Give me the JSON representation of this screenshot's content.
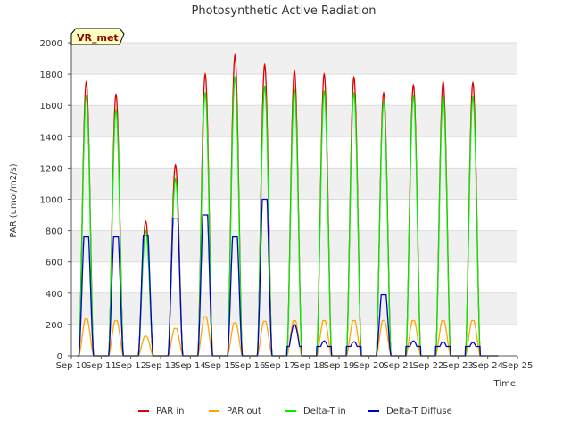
{
  "chart_data": {
    "type": "line",
    "title": "Photosynthetic Active Radiation",
    "xlabel": "Time",
    "ylabel": "PAR (umol/m2/s)",
    "site_label": "VR_met",
    "ylim": [
      0,
      2000
    ],
    "yticks": [
      0,
      200,
      400,
      600,
      800,
      1000,
      1200,
      1400,
      1600,
      1800,
      2000
    ],
    "xlim": [
      10,
      25
    ],
    "xticks": [
      {
        "value": 10,
        "label": "Sep 10"
      },
      {
        "value": 11,
        "label": "Sep 11"
      },
      {
        "value": 12,
        "label": "Sep 12"
      },
      {
        "value": 13,
        "label": "Sep 13"
      },
      {
        "value": 14,
        "label": "Sep 14"
      },
      {
        "value": 15,
        "label": "Sep 15"
      },
      {
        "value": 16,
        "label": "Sep 16"
      },
      {
        "value": 17,
        "label": "Sep 17"
      },
      {
        "value": 18,
        "label": "Sep 18"
      },
      {
        "value": 19,
        "label": "Sep 19"
      },
      {
        "value": 20,
        "label": "Sep 20"
      },
      {
        "value": 21,
        "label": "Sep 21"
      },
      {
        "value": 22,
        "label": "Sep 22"
      },
      {
        "value": 23,
        "label": "Sep 23"
      },
      {
        "value": 24,
        "label": "Sep 24"
      },
      {
        "value": 25,
        "label": "Sep 25"
      }
    ],
    "day_peaks": [
      {
        "day": 10,
        "par_in": 1750,
        "par_out": 235,
        "delta_t_in": 1660,
        "diffuse": 760
      },
      {
        "day": 11,
        "par_in": 1670,
        "par_out": 225,
        "delta_t_in": 1570,
        "diffuse": 760
      },
      {
        "day": 12,
        "par_in": 860,
        "par_out": 125,
        "delta_t_in": 800,
        "diffuse": 770
      },
      {
        "day": 13,
        "par_in": 1220,
        "par_out": 175,
        "delta_t_in": 1130,
        "diffuse": 880
      },
      {
        "day": 14,
        "par_in": 1800,
        "par_out": 250,
        "delta_t_in": 1680,
        "diffuse": 900
      },
      {
        "day": 15,
        "par_in": 1920,
        "par_out": 210,
        "delta_t_in": 1780,
        "diffuse": 760
      },
      {
        "day": 16,
        "par_in": 1860,
        "par_out": 220,
        "delta_t_in": 1720,
        "diffuse": 1000
      },
      {
        "day": 17,
        "par_in": 1820,
        "par_out": 225,
        "delta_t_in": 1700,
        "diffuse": 200
      },
      {
        "day": 18,
        "par_in": 1800,
        "par_out": 225,
        "delta_t_in": 1690,
        "diffuse": 95
      },
      {
        "day": 19,
        "par_in": 1780,
        "par_out": 225,
        "delta_t_in": 1680,
        "diffuse": 90
      },
      {
        "day": 20,
        "par_in": 1680,
        "par_out": 225,
        "delta_t_in": 1620,
        "diffuse": 390
      },
      {
        "day": 21,
        "par_in": 1730,
        "par_out": 225,
        "delta_t_in": 1660,
        "diffuse": 95
      },
      {
        "day": 22,
        "par_in": 1750,
        "par_out": 225,
        "delta_t_in": 1660,
        "diffuse": 90
      },
      {
        "day": 23,
        "par_in": 1745,
        "par_out": 225,
        "delta_t_in": 1650,
        "diffuse": 85
      }
    ],
    "series": [
      {
        "name": "PAR in",
        "color": "#dd0000"
      },
      {
        "name": "PAR out",
        "color": "#ffa500"
      },
      {
        "name": "Delta-T in",
        "color": "#00ee00"
      },
      {
        "name": "Delta-T Diffuse",
        "color": "#0000cc"
      }
    ],
    "legend_position": "bottom"
  }
}
